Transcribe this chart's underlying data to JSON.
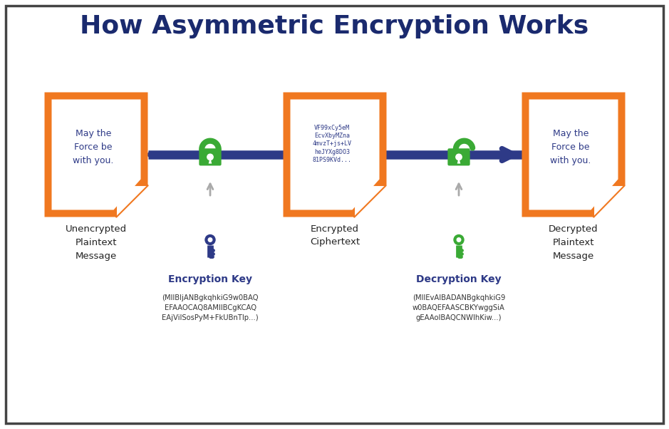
{
  "title": "How Asymmetric Encryption Works",
  "title_color": "#1a2a6e",
  "title_fontsize": 26,
  "background_color": "#ffffff",
  "border_color": "#333333",
  "orange_color": "#f07820",
  "dark_blue_color": "#2e3a87",
  "green_color": "#3aaa35",
  "gray_color": "#aaaaaa",
  "doc1_text": "May the\nForce be\nwith you.",
  "doc1_label": "Unencrypted\nPlaintext\nMessage",
  "doc2_text": "VF99xCy5eM\nEcvXbyMZna\n4mvzT+js+LV\nheJYXg8DO3\n81PS9KVd...",
  "doc2_label": "Encrypted\nCiphertext",
  "doc3_text": "May the\nForce be\nwith you.",
  "doc3_label": "Decrypted\nPlaintext\nMessage",
  "enc_key_label": "Encryption Key",
  "enc_key_sub": "(MIIBIjANBgkqhkiG9w0BAQ\nEFAAOCAQ8AMIIBCgKCAQ\nEAjVilSosPyM+FkUBnTlp...)",
  "dec_key_label": "Decryption Key",
  "dec_key_sub": "(MIIEvAIBADANBgkqhkiG9\nw0BAQEFAASCBKYwggSiA\ngEAAoIBAQCNWIhKiw...)"
}
